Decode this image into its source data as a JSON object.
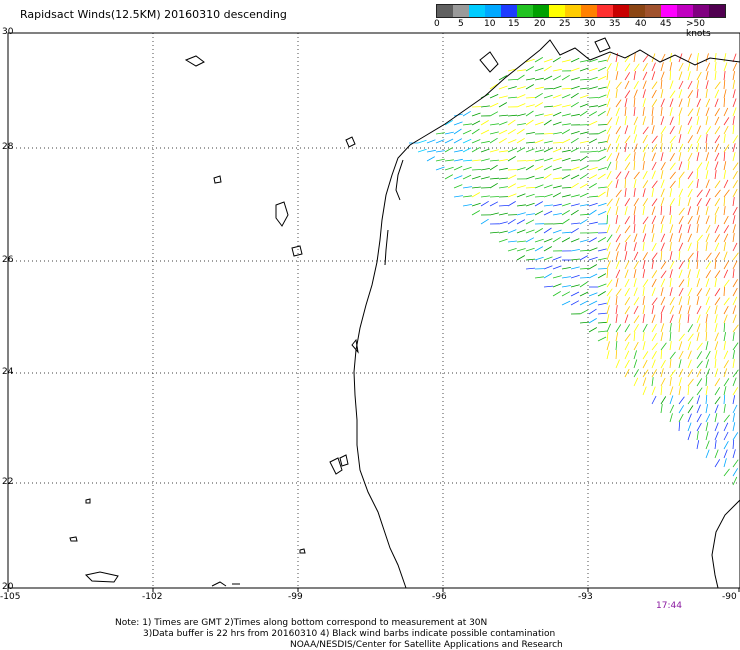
{
  "title": "Rapidsact Winds(12.5KM) 20160310 descending",
  "legend": {
    "colors": [
      "#606060",
      "#9a9a9a",
      "#00ccff",
      "#00a8ff",
      "#1e3cff",
      "#22c322",
      "#00a000",
      "#ffff00",
      "#ffcc00",
      "#ff8000",
      "#ff3030",
      "#c80000",
      "#8b4513",
      "#a0522d",
      "#ff00ff",
      "#c000c0",
      "#800080",
      "#500050"
    ],
    "labels": [
      "0",
      "5",
      "10",
      "15",
      "20",
      "25",
      "30",
      "35",
      "40",
      "45",
      ">50 knots"
    ]
  },
  "y_axis_labels": [
    "30",
    "28",
    "26",
    "24",
    "22",
    "20"
  ],
  "x_axis_labels": [
    "-105",
    "-102",
    "-99",
    "-96",
    "-93",
    "-90"
  ],
  "time_label": "17:44",
  "notes": [
    "Note: 1) Times are GMT 2)Times along bottom correspond to measurement at 30N",
    "3)Data buffer is 22 hrs from 20160310 4) Black wind barbs indicate possible contamination",
    "NOAA/NESDIS/Center for Satellite Applications and Research"
  ]
}
